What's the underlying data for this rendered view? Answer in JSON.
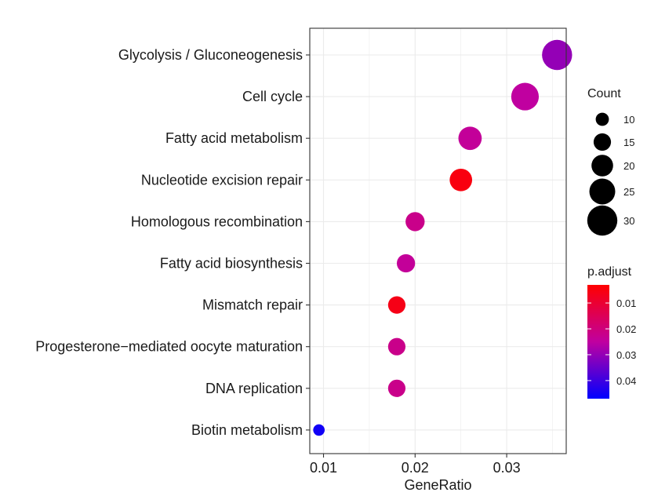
{
  "chart_data": {
    "type": "scatter",
    "title": "",
    "xlabel": "GeneRatio",
    "ylabel": "",
    "xlim": [
      0.0085,
      0.0365
    ],
    "x_ticks": [
      "0.01",
      "0.02",
      "0.03"
    ],
    "grid": true,
    "categories": [
      "Glycolysis / Gluconeogenesis",
      "Cell cycle",
      "Fatty acid metabolism",
      "Nucleotide excision repair",
      "Homologous recombination",
      "Fatty acid biosynthesis",
      "Mismatch repair",
      "Progesterone−mediated oocyte maturation",
      "DNA replication",
      "Biotin metabolism"
    ],
    "points": [
      {
        "category": "Glycolysis / Gluconeogenesis",
        "gene_ratio": 0.0355,
        "count": 30,
        "p_adjust": 0.03
      },
      {
        "category": "Cell cycle",
        "gene_ratio": 0.032,
        "count": 27,
        "p_adjust": 0.025
      },
      {
        "category": "Fatty acid metabolism",
        "gene_ratio": 0.026,
        "count": 22,
        "p_adjust": 0.024
      },
      {
        "category": "Nucleotide excision repair",
        "gene_ratio": 0.025,
        "count": 21,
        "p_adjust": 0.005
      },
      {
        "category": "Homologous recombination",
        "gene_ratio": 0.02,
        "count": 17,
        "p_adjust": 0.022
      },
      {
        "category": "Fatty acid biosynthesis",
        "gene_ratio": 0.019,
        "count": 16,
        "p_adjust": 0.024
      },
      {
        "category": "Mismatch repair",
        "gene_ratio": 0.018,
        "count": 15,
        "p_adjust": 0.006
      },
      {
        "category": "Progesterone−mediated oocyte maturation",
        "gene_ratio": 0.018,
        "count": 15,
        "p_adjust": 0.022
      },
      {
        "category": "DNA replication",
        "gene_ratio": 0.018,
        "count": 15,
        "p_adjust": 0.022
      },
      {
        "category": "Biotin metabolism",
        "gene_ratio": 0.0095,
        "count": 8,
        "p_adjust": 0.045
      }
    ],
    "size_legend": {
      "title": "Count",
      "values": [
        10,
        15,
        20,
        25,
        30
      ]
    },
    "color_legend": {
      "title": "p.adjust",
      "ticks": [
        "0.01",
        "0.02",
        "0.03",
        "0.04"
      ],
      "range": [
        0.003,
        0.047
      ],
      "low_color": "#ff0000",
      "high_color": "#0000ff"
    },
    "legend_position": "right"
  }
}
